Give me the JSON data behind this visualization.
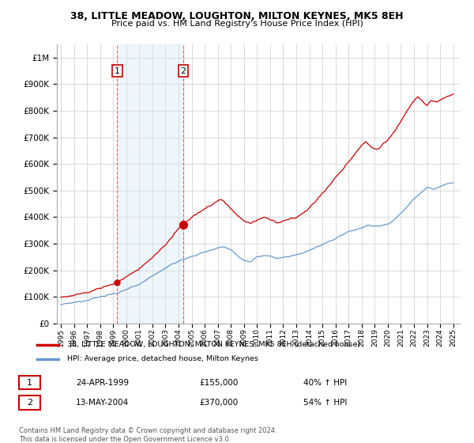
{
  "title_line1": "38, LITTLE MEADOW, LOUGHTON, MILTON KEYNES, MK5 8EH",
  "title_line2": "Price paid vs. HM Land Registry's House Price Index (HPI)",
  "legend_label_red": "38, LITTLE MEADOW, LOUGHTON, MILTON KEYNES, MK5 8EH (detached house)",
  "legend_label_blue": "HPI: Average price, detached house, Milton Keynes",
  "annotation1_date": "24-APR-1999",
  "annotation1_price": "£155,000",
  "annotation1_hpi": "40% ↑ HPI",
  "annotation2_date": "13-MAY-2004",
  "annotation2_price": "£370,000",
  "annotation2_hpi": "54% ↑ HPI",
  "footnote": "Contains HM Land Registry data © Crown copyright and database right 2024.\nThis data is licensed under the Open Government Licence v3.0.",
  "red_color": "#cc0000",
  "blue_color": "#6699cc",
  "vline_color": "#cc0000",
  "shade_color": "#d0e4f5",
  "grid_color": "#cccccc",
  "background_color": "#ffffff",
  "ylim": [
    0,
    1050000
  ],
  "yticks": [
    0,
    100000,
    200000,
    300000,
    400000,
    500000,
    600000,
    700000,
    800000,
    900000,
    1000000
  ],
  "sale1_x": 1999.31,
  "sale1_y": 155000,
  "sale2_x": 2004.37,
  "sale2_y": 370000,
  "shade_alpha": 0.35,
  "xlim_left": 1994.7,
  "xlim_right": 2025.5
}
